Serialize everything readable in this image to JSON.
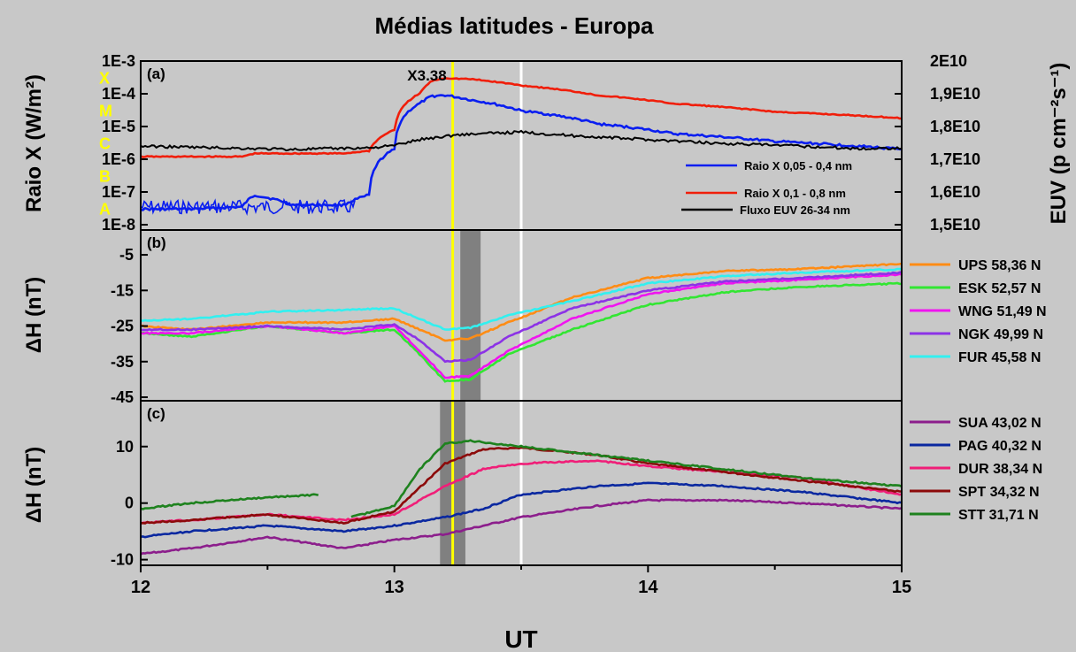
{
  "chart_data": {
    "type": "line",
    "title": "Médias latitudes - Europa",
    "xlabel": "UT",
    "x_ticks": [
      "12",
      "13",
      "14",
      "15"
    ],
    "xlim": [
      12,
      15
    ],
    "markers": [
      {
        "name": "flare-peak-line",
        "x": 13.23,
        "color": "#ffff00"
      },
      {
        "name": "euv-peak-line",
        "x": 13.5,
        "color": "#ffffff"
      }
    ],
    "panels": [
      {
        "id": "a",
        "label": "(a)",
        "ylabel_left": "Raio X (W/m²)",
        "ylabel_right": "EUV (p cm⁻²s⁻¹)",
        "y_ticks_left": [
          "1E-3",
          "1E-4",
          "1E-5",
          "1E-6",
          "1E-7",
          "1E-8"
        ],
        "y_ticks_right": [
          "2E10",
          "1,9E10",
          "1,8E10",
          "1,7E10",
          "1,6E10",
          "1,5E10"
        ],
        "ylim_left": [
          1e-08,
          0.001
        ],
        "yscale_left": "log",
        "ylim_right": [
          15000000000,
          20000000000
        ],
        "flare_classes": [
          "X",
          "M",
          "C",
          "B",
          "A"
        ],
        "flare_class_color": "#ffff00",
        "annotation": "X3.38",
        "series": [
          {
            "name": "Raio X 0,05 - 0,4 nm",
            "color": "#0a1ef0",
            "axis": "left",
            "x": [
              12.0,
              12.2,
              12.4,
              12.45,
              12.6,
              12.8,
              12.9,
              13.0,
              13.1,
              13.15,
              13.2,
              13.3,
              13.5,
              13.8,
              14.1,
              14.5,
              15.0
            ],
            "y": [
              3e-08,
              3e-08,
              3.5e-08,
              8e-08,
              4e-08,
              4e-08,
              8e-08,
              2e-06,
              5e-05,
              8.5e-05,
              9e-05,
              6.5e-05,
              3e-05,
              1.2e-05,
              6e-06,
              3.5e-06,
              2e-06
            ]
          },
          {
            "name": "Raio X 0,1 - 0,8 nm",
            "color": "#f01e0a",
            "axis": "left",
            "x": [
              12.0,
              12.4,
              12.45,
              12.8,
              12.9,
              13.0,
              13.1,
              13.15,
              13.2,
              13.3,
              13.5,
              13.8,
              14.1,
              14.5,
              15.0
            ],
            "y": [
              1.2e-06,
              1.2e-06,
              1.5e-06,
              1.5e-06,
              1.8e-06,
              8e-06,
              0.0001,
              0.00025,
              0.0003,
              0.00028,
              0.00018,
              9e-05,
              5e-05,
              2.8e-05,
              1.8e-05
            ]
          },
          {
            "name": "Fluxo EUV 26-34 nm",
            "color": "#000000",
            "axis": "right",
            "x": [
              12.0,
              12.3,
              12.6,
              12.9,
              13.0,
              13.1,
              13.25,
              13.4,
              13.5,
              13.7,
              14.0,
              14.3,
              14.6,
              14.85,
              15.0
            ],
            "y": [
              17400000000,
              17350000000,
              17300000000,
              17350000000,
              17420000000,
              17600000000,
              17750000000,
              17800000000,
              17830000000,
              17720000000,
              17600000000,
              17480000000,
              17400000000,
              17320000000,
              17350000000
            ]
          }
        ]
      },
      {
        "id": "b",
        "label": "(b)",
        "ylabel": "ΔH (nT)",
        "y_ticks": [
          "-5",
          "-15",
          "-25",
          "-35",
          "-45"
        ],
        "ylim": [
          -45,
          -2
        ],
        "shade": [
          13.26,
          13.34
        ],
        "series": [
          {
            "name": "UPS 58,36 N",
            "color": "#ff8c14",
            "x": [
              12.0,
              12.2,
              12.5,
              12.8,
              13.0,
              13.1,
              13.2,
              13.3,
              13.45,
              13.7,
              14.0,
              14.3,
              14.6,
              15.0
            ],
            "y": [
              -25,
              -26,
              -24,
              -24,
              -23,
              -26,
              -29,
              -28.5,
              -24,
              -17,
              -11.5,
              -9.5,
              -9,
              -7.5
            ]
          },
          {
            "name": "ESK 52,57 N",
            "color": "#32e632",
            "x": [
              12.0,
              12.2,
              12.5,
              12.8,
              13.0,
              13.1,
              13.2,
              13.3,
              13.45,
              13.7,
              14.0,
              14.3,
              14.6,
              15.0
            ],
            "y": [
              -27,
              -28,
              -25,
              -27,
              -26,
              -33,
              -40.5,
              -40,
              -33,
              -26,
              -19,
              -15.5,
              -14,
              -13
            ]
          },
          {
            "name": "WNG 51,49 N",
            "color": "#f014f0",
            "x": [
              12.0,
              12.2,
              12.5,
              12.8,
              13.0,
              13.1,
              13.2,
              13.3,
              13.45,
              13.7,
              14.0,
              14.3,
              14.6,
              15.0
            ],
            "y": [
              -27,
              -27,
              -25,
              -27,
              -25,
              -32,
              -39.5,
              -39,
              -32,
              -23,
              -16,
              -13,
              -12,
              -10.5
            ]
          },
          {
            "name": "NGK 49,99 N",
            "color": "#8c32e6",
            "x": [
              12.0,
              12.2,
              12.5,
              12.8,
              13.0,
              13.1,
              13.2,
              13.3,
              13.45,
              13.7,
              14.0,
              14.3,
              14.6,
              15.0
            ],
            "y": [
              -26,
              -26,
              -25,
              -26,
              -24.5,
              -29,
              -35,
              -34.5,
              -28,
              -20,
              -15,
              -12.5,
              -11.5,
              -10
            ]
          },
          {
            "name": "FUR 45,58 N",
            "color": "#32f0f0",
            "x": [
              12.0,
              12.2,
              12.5,
              12.8,
              13.0,
              13.1,
              13.2,
              13.3,
              13.45,
              13.7,
              14.0,
              14.3,
              14.6,
              15.0
            ],
            "y": [
              -23.5,
              -23,
              -21,
              -20.5,
              -20,
              -23,
              -26,
              -25.5,
              -22,
              -18,
              -13,
              -11,
              -10,
              -9
            ]
          }
        ]
      },
      {
        "id": "c",
        "label": "(c)",
        "ylabel": "ΔH (nT)",
        "y_ticks": [
          "10",
          "0",
          "-10"
        ],
        "ylim": [
          -11,
          14.5
        ],
        "shade": [
          13.18,
          13.28
        ],
        "series": [
          {
            "name": "SUA 43,02 N",
            "color": "#8c1e8c",
            "x": [
              12.0,
              12.2,
              12.5,
              12.8,
              13.0,
              13.2,
              13.35,
              13.5,
              13.8,
              14.0,
              14.3,
              14.6,
              15.0
            ],
            "y": [
              -9,
              -8,
              -6,
              -8,
              -6.5,
              -5.5,
              -4,
              -2.5,
              -0.5,
              0.5,
              0.5,
              0,
              -1
            ]
          },
          {
            "name": "PAG 40,32 N",
            "color": "#0a28a0",
            "x": [
              12.0,
              12.2,
              12.5,
              12.8,
              13.0,
              13.2,
              13.35,
              13.5,
              13.8,
              14.0,
              14.3,
              14.6,
              15.0
            ],
            "y": [
              -6,
              -5,
              -4,
              -5,
              -4,
              -2.5,
              -1,
              1.5,
              3,
              3.5,
              3,
              2,
              0
            ]
          },
          {
            "name": "DUR 38,34 N",
            "color": "#f01e78",
            "x": [
              12.0,
              12.2,
              12.5,
              12.8,
              13.0,
              13.2,
              13.35,
              13.5,
              13.8,
              14.0,
              14.3,
              14.6,
              15.0
            ],
            "y": [
              -3.5,
              -3,
              -2,
              -3,
              -2,
              3,
              6,
              7,
              7.5,
              6.5,
              5.5,
              4.5,
              1.5
            ]
          },
          {
            "name": "SPT 34,32 N",
            "color": "#8c0a0a",
            "x": [
              12.0,
              12.2,
              12.5,
              12.8,
              13.0,
              13.2,
              13.35,
              13.5,
              13.8,
              14.0,
              14.3,
              14.6,
              15.0
            ],
            "y": [
              -3.5,
              -3,
              -2,
              -3.5,
              -1.5,
              7,
              9.5,
              9.8,
              8.5,
              7,
              5.5,
              4,
              2
            ]
          },
          {
            "name": "STT 31,71 N",
            "color": "#1e821e",
            "x": [
              12.0,
              12.2,
              12.5,
              12.7,
              12.75,
              12.83,
              13.0,
              13.1,
              13.2,
              13.3,
              13.5,
              13.8,
              14.0,
              14.3,
              14.6,
              15.0
            ],
            "y": [
              -1,
              0,
              1,
              1.5,
              null,
              -2.5,
              -0.5,
              6,
              10.5,
              11,
              10,
              8.5,
              7.5,
              6,
              4.5,
              3
            ]
          }
        ]
      }
    ]
  }
}
